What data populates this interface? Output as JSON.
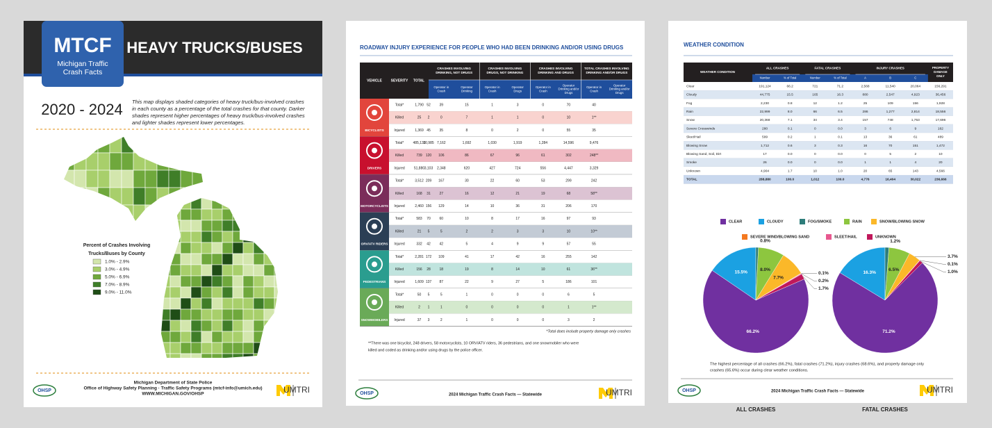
{
  "page1": {
    "badge": "MTCF",
    "badge_sub": [
      "Michigan Traffic",
      "Crash Facts"
    ],
    "title": "HEAVY TRUCKS/BUSES",
    "years": "2020 - 2024",
    "description": [
      "This map displays shaded categories of heavy truck/bus-involved crashes",
      "in each county as a percentage of the total crashes for that county. Darker",
      "shades represent higher percentages of heavy truck/bus-involved crashes",
      "and lighter shades represent lower percentages."
    ],
    "legend": {
      "title": [
        "Percent of Crashes Involving",
        "Trucks/Buses by County"
      ],
      "items": [
        {
          "label": "1.0% - 2.9%",
          "color": "#d3e6ad"
        },
        {
          "label": "3.0% - 4.9%",
          "color": "#a8cf6b"
        },
        {
          "label": "5.0% - 6.9%",
          "color": "#6fa83c"
        },
        {
          "label": "7.0% - 8.9%",
          "color": "#3f7e28"
        },
        {
          "label": "9.0% - 11.0%",
          "color": "#1f4d16"
        }
      ]
    },
    "footer": [
      "Michigan Department of State Police",
      "Office of Highway Safety Planning · Traffic Safety Programs (mtcf-info@umich.edu)",
      "WWW.MICHIGAN.GOV/OHSP"
    ],
    "ohsp": "OHSP",
    "logo": "UMTRI"
  },
  "page2": {
    "title": "ROADWAY INJURY EXPERIENCE FOR PEOPLE WHO HAD BEEN DRINKING AND/OR USING DRUGS",
    "headers": {
      "vehicle": "VEHICLE",
      "severity": "SEVERITY",
      "total": "TOTAL",
      "groups": [
        [
          "CRASHES INVOLVING",
          "DRINKING, NOT DRUGS"
        ],
        [
          "CRASHES INVOLVING",
          "DRUGS, NOT DRINKING"
        ],
        [
          "CRASHES INVOLVING",
          "DRINKING AND DRUGS"
        ],
        [
          "TOTAL CRASHES INVOLVING",
          "DRINKING AND/OR DRUGS"
        ]
      ],
      "sub": [
        [
          "Operator in",
          "Crash"
        ],
        [
          "Operator",
          "Drinking"
        ],
        [
          "Operator in",
          "Crash"
        ],
        [
          "Operator",
          "Drugs"
        ],
        [
          "Operator in",
          "Crash"
        ],
        [
          "Operator",
          "Drinking and/or",
          "Drugs"
        ],
        [
          "Operator in",
          "Crash"
        ],
        [
          "Operator",
          "Drinking and/or",
          "Drugs"
        ]
      ]
    },
    "groups": [
      {
        "name": "BICYCLISTS",
        "color": "#e2453c",
        "tint": "#f9d3cf",
        "rows": [
          [
            "Total*",
            "1,790",
            "52",
            "39",
            "15",
            "1",
            "3",
            "0",
            "70",
            "40"
          ],
          [
            "Killed",
            "25",
            "2",
            "0",
            "7",
            "1",
            "1",
            "0",
            "10",
            "1**"
          ],
          [
            "Injured",
            "1,369",
            "45",
            "35",
            "8",
            "0",
            "2",
            "0",
            "55",
            "35"
          ]
        ]
      },
      {
        "name": "DRIVERS",
        "color": "#c8102e",
        "tint": "#f0b9c2",
        "rows": [
          [
            "Total*",
            "485,133",
            "10,985",
            "7,162",
            "1,692",
            "1,030",
            "1,919",
            "1,284",
            "14,596",
            "9,476"
          ],
          [
            "Killed",
            "739",
            "120",
            "106",
            "86",
            "67",
            "96",
            "61",
            "302",
            "248**"
          ],
          [
            "Injured",
            "51,880",
            "3,103",
            "2,348",
            "620",
            "427",
            "724",
            "556",
            "4,447",
            "3,329"
          ]
        ]
      },
      {
        "name": "MOTORCYCLISTS",
        "color": "#7b2d5a",
        "tint": "#dcc3d3",
        "rows": [
          [
            "Total*",
            "3,512",
            "209",
            "167",
            "30",
            "22",
            "60",
            "53",
            "299",
            "242"
          ],
          [
            "Killed",
            "168",
            "31",
            "27",
            "16",
            "12",
            "21",
            "19",
            "68",
            "58**"
          ],
          [
            "Injured",
            "2,460",
            "156",
            "129",
            "14",
            "10",
            "36",
            "31",
            "206",
            "170"
          ]
        ]
      },
      {
        "name": "ORV/ATV RIDERS",
        "color": "#2b3f55",
        "tint": "#c3cbd5",
        "rows": [
          [
            "Total*",
            "583",
            "70",
            "60",
            "10",
            "8",
            "17",
            "16",
            "97",
            "93"
          ],
          [
            "Killed",
            "21",
            "5",
            "5",
            "2",
            "2",
            "3",
            "3",
            "10",
            "10**"
          ],
          [
            "Injured",
            "332",
            "42",
            "42",
            "5",
            "4",
            "9",
            "9",
            "57",
            "55"
          ]
        ]
      },
      {
        "name": "PEDESTRIANS",
        "color": "#2a9d8f",
        "tint": "#c0e4de",
        "rows": [
          [
            "Total*",
            "2,281",
            "172",
            "109",
            "41",
            "17",
            "42",
            "16",
            "255",
            "142"
          ],
          [
            "Killed",
            "156",
            "28",
            "18",
            "19",
            "8",
            "14",
            "10",
            "61",
            "36**"
          ],
          [
            "Injured",
            "1,609",
            "137",
            "87",
            "22",
            "9",
            "27",
            "5",
            "186",
            "101"
          ]
        ]
      },
      {
        "name": "SNOWMOBILERS",
        "color": "#6aaa58",
        "tint": "#d4e9cd",
        "rows": [
          [
            "Total*",
            "50",
            "5",
            "5",
            "1",
            "0",
            "0",
            "0",
            "6",
            "5"
          ],
          [
            "Killed",
            "2",
            "1",
            "1",
            "0",
            "0",
            "0",
            "0",
            "1",
            "1**"
          ],
          [
            "Injured",
            "37",
            "3",
            "2",
            "1",
            "0",
            "0",
            "0",
            "3",
            "2"
          ]
        ]
      }
    ],
    "note_total": "*Total does include property damage only crashes",
    "note": [
      "**There was one bicyclist, 248 drivers, 58 motorcyclists, 10 ORV/ATV riders, 36 pedestrians, and one snowmobiler who were",
      "killed and coded as drinking and/or using drugs by the police officer."
    ],
    "footer": "2024 Michigan Traffic Crash Facts — Statewide",
    "ohsp": "OHSP",
    "logo": "UMTRI"
  },
  "page3": {
    "title": "WEATHER CONDITION",
    "headers": {
      "condition": "WEATHER CONDITION",
      "groups": [
        "ALL CRASHES",
        "FATAL CRASHES",
        "INJURY CRASHES"
      ],
      "pdo": [
        "PROPERTY",
        "DAMAGE",
        "ONLY"
      ],
      "sub": [
        "Number",
        "% of Total",
        "Number",
        "% of Total",
        "A",
        "B",
        "C"
      ]
    },
    "rows": [
      [
        "Clear",
        "191,124",
        "66.2",
        "721",
        "71.2",
        "2,568",
        "11,540",
        "20,064",
        "156,291"
      ],
      [
        "Cloudy",
        "44,775",
        "15.5",
        "165",
        "16.3",
        "880",
        "2,547",
        "4,923",
        "36,456"
      ],
      [
        "Fog",
        "2,230",
        "0.8",
        "12",
        "1.2",
        "25",
        "109",
        "156",
        "1,928"
      ],
      [
        "Rain",
        "22,999",
        "8.0",
        "66",
        "6.5",
        "286",
        "1,277",
        "2,814",
        "18,556"
      ],
      [
        "Snow",
        "20,368",
        "7.1",
        "34",
        "3.4",
        "157",
        "748",
        "1,753",
        "17,696"
      ],
      [
        "Severe Crosswinds",
        "280",
        "0.1",
        "0",
        "0.0",
        "3",
        "6",
        "9",
        "162"
      ],
      [
        "Sleet/Hail",
        "599",
        "0.2",
        "1",
        "0.1",
        "13",
        "36",
        "61",
        "489"
      ],
      [
        "Blowing Snow",
        "1,712",
        "0.6",
        "3",
        "0.3",
        "16",
        "70",
        "151",
        "1,472"
      ],
      [
        "Blowing Sand, Soil, Dirt",
        "17",
        "0.0",
        "0",
        "0.0",
        "0",
        "5",
        "2",
        "10"
      ],
      [
        "Smoke",
        "26",
        "0.0",
        "0",
        "0.0",
        "1",
        "1",
        "4",
        "20"
      ],
      [
        "Unknown",
        "4,904",
        "1.7",
        "10",
        "1.0",
        "20",
        "65",
        "143",
        "4,566"
      ],
      [
        "TOTAL",
        "288,880",
        "100.0",
        "1,012",
        "100.0",
        "4,776",
        "16,404",
        "30,022",
        "236,666"
      ]
    ],
    "caption": [
      "The highest percentage of all crashes (66.2%), fatal crashes (71.2%), injury crashes (68.6%), and property damage only",
      "crashes (65.6%) occur during clear weather conditions."
    ],
    "footer": "2024 Michigan Traffic Crash Facts — Statewide",
    "ohsp": "OHSP",
    "logo": "UMTRI"
  },
  "chart_data": [
    {
      "type": "pie",
      "title": "ALL CRASHES",
      "categories": [
        "CLEAR",
        "CLOUDY",
        "FOG/SMOKE",
        "RAIN",
        "SNOW/BLOWING SNOW",
        "SEVERE WIND/BLOWING SAND",
        "SLEET/HAIL",
        "UNKNOWN"
      ],
      "colors": [
        "#7030a0",
        "#1ba1e2",
        "#2e7d7a",
        "#8dc63f",
        "#fbb829",
        "#f47920",
        "#e8588f",
        "#c0185b"
      ],
      "values": [
        66.2,
        15.5,
        0.8,
        8.0,
        7.7,
        0.1,
        0.2,
        1.7
      ],
      "value_labels": [
        "66.2%",
        "15.5%",
        "0.8%",
        "8.0%",
        "7.7%",
        "0.1%",
        "0.2%",
        "1.7%"
      ]
    },
    {
      "type": "pie",
      "title": "FATAL CRASHES",
      "values": [
        71.2,
        16.3,
        1.2,
        6.5,
        3.7,
        0.0,
        0.1,
        1.0
      ],
      "value_labels": [
        "71.2%",
        "16.3%",
        "1.2%",
        "6.5%",
        "3.7%",
        null,
        "0.1%",
        "1.0%"
      ]
    }
  ]
}
